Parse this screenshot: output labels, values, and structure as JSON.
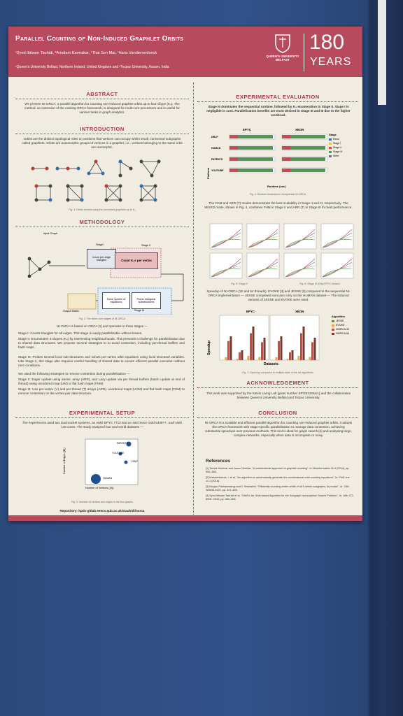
{
  "header": {
    "title": "Parallel Counting of Non-Induced Graphlet Orbits",
    "authors": "¹Syed Ibtisam Tauhidi, ²Arindam Karmakar, ¹Thai Son Mai, ¹Hans Vandierendonck",
    "affiliations": "¹Queen's University Belfast, Northern Ireland, United Kingdom  and  ²Tezpur University, Assam, India",
    "logo": "QUEEN'S UNIVERSITY BELFAST",
    "anniversary": "180",
    "anniversary_word": "YEARS"
  },
  "abstract": {
    "heading": "Abstract",
    "text": "We present NI-ORCA, a parallel algorithm for counting non-induced graphlet orbits up to four-clique (K₄). The method, an extension of the existing ORCA framework, is designed for multi-core processors and is useful for various tasks in graph analytics."
  },
  "introduction": {
    "heading": "Introduction",
    "text": "Orbits are the distinct topological roles or positions that vertices can occupy within small, connected subgraphs called graphlets. Orbits are automorphic groups of vertices in a graphlet, i.e., vertices belonging to the same orbit are isomorphic.",
    "caption": "Fig. 1: Orbits formed using the connected graphlets up to K₄"
  },
  "methodology": {
    "heading": "Methodology",
    "labels": [
      "Input Graph",
      "Stage I",
      "Count per-edge triangles",
      "Stage II",
      "Count K₄s per vertex",
      "Stage III",
      "Solve system of equations",
      "Probe triangular substructures",
      "Output Matrix"
    ],
    "caption": "Fig. 2: The three core stages of NI-ORCA",
    "intro": "NI-ORCA is based on ORCA [1] and operates in three stages —",
    "stages": [
      "Stage I: Counts triangles for all edges. This stage is easily parallelizable without issues.",
      "Stage II: Enumerates 4-cliques (K₄) by intersecting neighbourhoods. This presents a challenge for parallelization due to shared data structures. We propose several strategies to to avoid contention, including per-thread buffers and hash maps.",
      "Stage III: Probes several local sub-structures and solves per-vertex orbit equations using local structural variables. Like Stage II, this stage also requires careful handling of shared data to ensure efficient parallel execution without race conditions."
    ],
    "strategies": "We used the following strategies to remove contention during parallelisation —",
    "strategy_items": [
      "Stage II: Eager update using atomic array (ARR), and Lazy update via per thread buffers (batch update at end of thread) using unordered map (UM) or flat hash maps (FHM)",
      "Stage III: Use per-vertex (V) and per-thread (T) arrays (ARR), unordered maps (UOM) and flat hash maps (FHM) to remove contention on the vertex-pair data structure."
    ]
  },
  "setup": {
    "heading": "Experimental Setup",
    "text": "The experiments used two dual-socket systems, an AMD EPYC 7713 and an Intel Xeon Gold 6438Y+, each with 128 cores. The study analyzed four real-world datasets —",
    "points": [
      "PATENTS",
      "YOUTUBE",
      "DBLP",
      "HUMAN"
    ],
    "xlabel": "Number of Vertices (|V|)",
    "ylabel": "Number of Edges (|E|)",
    "caption": "Fig. 3: Number of vertices and edges in the four graphs",
    "repository": "Repository: hpdc-gitlab.eeecs.qub.ac.uk/stauhidi/norca"
  },
  "evaluation": {
    "heading": "Experimental Evaluation",
    "text1": "Stage III dominates the sequential runtime, followed by K₄ enumeration in Stage II. Stage I is negligible in cost. Parallelisation benefits are most desired in Stage III and III due to the higher workload.",
    "runtime_titles": [
      "EPYC",
      "XEON"
    ],
    "runtime_legend_title": "Stage",
    "runtime_legend": [
      "Read",
      "Stage I",
      "Stage II",
      "Stage III",
      "Write"
    ],
    "runtime_categories": [
      "DBLP",
      "HUMAN",
      "PATENTS",
      "YOUTUBE"
    ],
    "runtime_ylabel": "Platform",
    "runtime_xlabel": "Runtime (sec)",
    "caption4": "Fig. 4: Runtime breakdown of sequential NI-ORCA",
    "text2": "The FHM and ARR (T) modes demonstrate the best scalability in Stage II and III, respectively. The MIXED mode, shown in Fig. 4, combines FHM in Stage II and ARR (T) in Stage III for best performance.",
    "caption5": "Fig. 5: Stage II",
    "caption6": "Fig. 6: Stage III (Only EPYC shown)",
    "text3": "Speedup of NI-ORCA (32 and 64 threads), EVOKE [3] and JESSE [2] compared to the sequential NI-ORCA implementation — JESSE completed execution only on the HUMAN dataset — The induced variants of JESSE and EVOKE were used.",
    "speedup_titles": [
      "EPYC",
      "XEON"
    ],
    "speedup_legend_title": "Algorithm",
    "speedup_legend": [
      "JESSE",
      "EVOKE",
      "NIORCA-32",
      "NIORCA-64"
    ],
    "speedup_ylabel": "Speedup",
    "speedup_xlabel": "Datasets",
    "caption7": "Fig. 7: Speedup compared to multiple state of the art algorithms"
  },
  "acknowledgement": {
    "heading": "Acknowledgement",
    "text": "This work was supported by the Kelvin Living Lab [grant number EP/Z531054/1] and the collaboration between Queen's University Belfast and Tezpur University."
  },
  "conclusion": {
    "heading": "Conclusion",
    "text": "NI-ORCA is a scalable and efficient parallel algorithm for counting non-induced graphlet orbits. It adopts the ORCA framework with stage-specific parallelisation to manage data contention, achieving substantial speedups over previous methods. This tool is ideal for graph search [4] and analysing large, complex networks, especially when data is incomplete or noisy."
  },
  "references": {
    "heading": "References",
    "items": [
      "[1] Tomaž Hočevar and Janez Demšar. \"A combinatorial approach to graphlet counting\". In: Bioinformatics 30.4 (2014), pp. 559–565.",
      "[2] Melckenbeeck, I. et al. \"An algorithm to automatically generate the combinatorial orbit counting equations\". In: PloS one 11.1 (2016).",
      "[3] Noujan Pashanasangi and C Seshadhri. \"Efficiently counting vertex orbits of all 5-vertex subgraphs, by evoke\". In: 13th WSDM 2020, pp. 447–455.",
      "[4] Syed Ibtisam Tauhidi et al. \"OrbiSI: An Orbit-based Algorithm for the Subgraph Isomorphism Search Problem\". In: 16th IC3. IEEE. 2024, pp. 360–365."
    ]
  }
}
